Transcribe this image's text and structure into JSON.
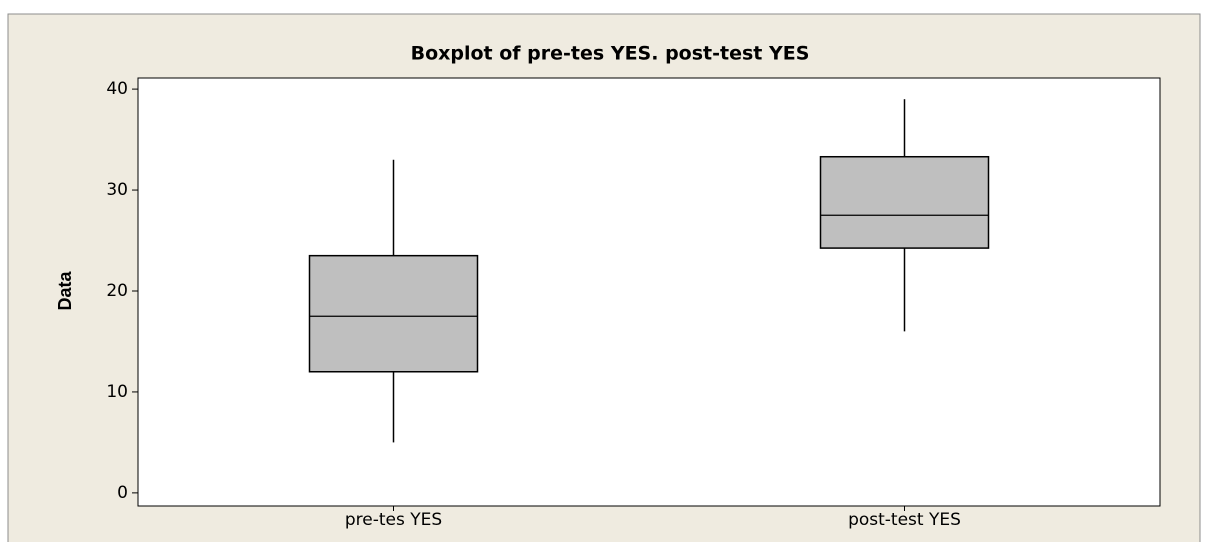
{
  "chart_data": {
    "type": "box",
    "title": "Boxplot of pre-tes YES. post-test YES",
    "ylabel": "Data",
    "categories": [
      "pre-tes YES",
      "post-test YES"
    ],
    "values": [
      {
        "min": 5,
        "q1": 12,
        "median": 17.5,
        "q3": 23.5,
        "max": 33
      },
      {
        "min": 16,
        "q1": 24.25,
        "median": 27.5,
        "q3": 33.3,
        "max": 39
      }
    ],
    "color": "#bfbfbf",
    "ylim": [
      -1.3,
      41.1
    ],
    "yticks": [
      0,
      10,
      20,
      30,
      40
    ],
    "grid": false
  }
}
